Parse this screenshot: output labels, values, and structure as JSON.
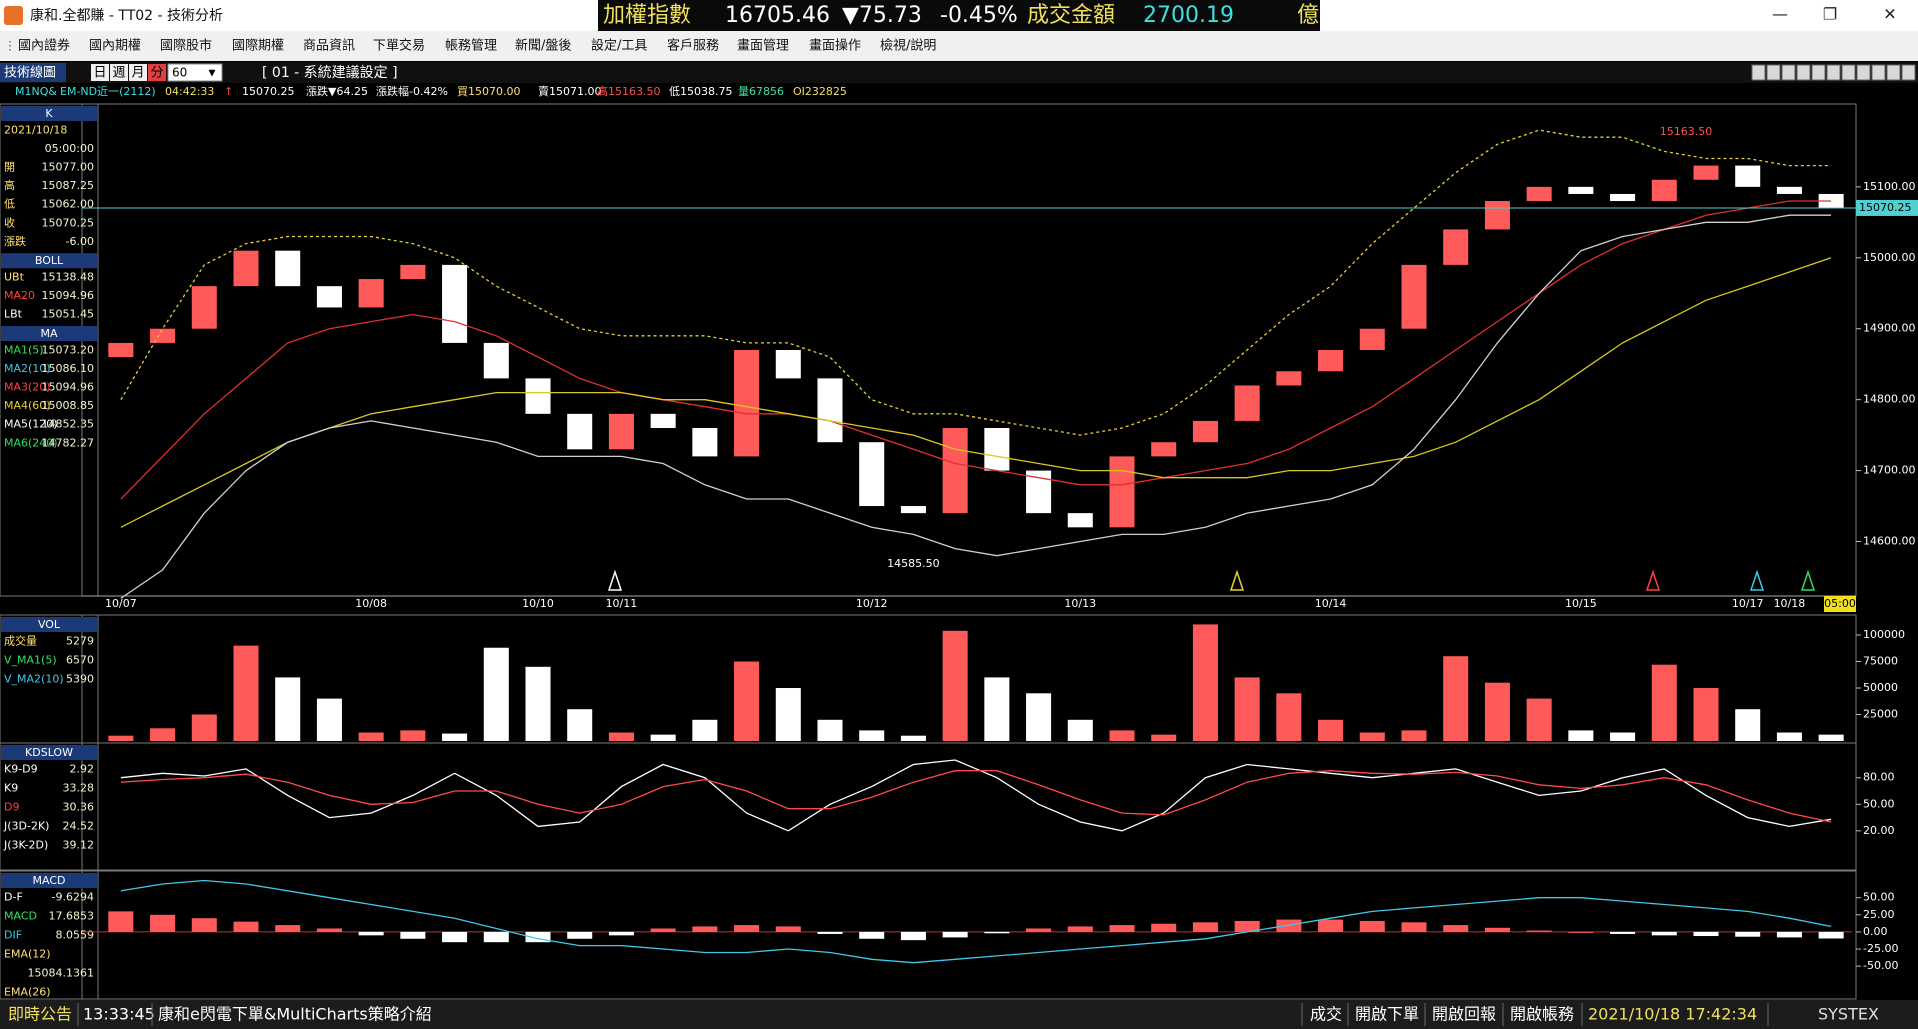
{
  "window": {
    "title": "康和.全都賺 - TT02 - 技術分析",
    "ticker": [
      "加權指數",
      "16705.46",
      "▼75.73",
      "-0.45%",
      "成交金額",
      "2700.19",
      "億"
    ]
  },
  "menu": [
    "國內證券",
    "國內期權",
    "國際股市",
    "國際期權",
    "商品資訊",
    "下單交易",
    "帳務管理",
    "新聞/盤後",
    "設定/工具",
    "客戶服務",
    "畫面管理",
    "畫面操作",
    "檢視/說明"
  ],
  "toolbar": {
    "title": "技術線圖",
    "periods": [
      "日",
      "週",
      "月",
      "分"
    ],
    "interval": "60",
    "scheme": "[ 01 - 系統建議設定 ]"
  },
  "info_bar": [
    "M1NQ&",
    "EM-ND近一(2112)",
    "04:42:33",
    "↑",
    "15070.25",
    "漲跌▼64.25",
    "漲跌幅-0.42%",
    "買15070.00",
    "賣15071.00",
    "高15163.50",
    "低15038.75",
    "量67856",
    "OI232825"
  ],
  "chart_data": [
    {
      "type": "candlestick",
      "categories": [
        "10/07",
        null,
        null,
        null,
        null,
        null,
        "10/08",
        null,
        null,
        null,
        "10/10",
        null,
        "10/11",
        null,
        null,
        null,
        null,
        null,
        "10/12",
        null,
        null,
        null,
        null,
        "10/13",
        null,
        null,
        null,
        null,
        null,
        "10/14",
        null,
        null,
        null,
        null,
        null,
        "10/15",
        null,
        null,
        null,
        "10/17",
        "10/18",
        null
      ],
      "open": [
        14860,
        14880,
        14900,
        14960,
        15010,
        14960,
        14930,
        14970,
        14990,
        14880,
        14830,
        14780,
        14730,
        14780,
        14760,
        14720,
        14870,
        14830,
        14740,
        14650,
        14640,
        14760,
        14700,
        14640,
        14620,
        14720,
        14740,
        14770,
        14820,
        14840,
        14870,
        14900,
        14990,
        15040,
        15080,
        15100,
        15090,
        15080,
        15110,
        15130,
        15100,
        15090
      ],
      "close": [
        14880,
        14900,
        14960,
        15010,
        14960,
        14930,
        14970,
        14990,
        14880,
        14830,
        14780,
        14730,
        14780,
        14760,
        14720,
        14870,
        14830,
        14740,
        14650,
        14640,
        14760,
        14700,
        14640,
        14620,
        14720,
        14740,
        14770,
        14820,
        14840,
        14870,
        14900,
        14990,
        15040,
        15080,
        15100,
        15090,
        15080,
        15110,
        15130,
        15100,
        15090,
        15070
      ],
      "up_color": "#ff5a5a",
      "down_color": "#ffffff",
      "series": [
        {
          "color": "#e03030",
          "dashed": false,
          "values": [
            14660,
            14720,
            14780,
            14830,
            14880,
            14900,
            14910,
            14920,
            14910,
            14890,
            14860,
            14830,
            14810,
            14800,
            14790,
            14780,
            14780,
            14770,
            14750,
            14730,
            14710,
            14700,
            14690,
            14680,
            14680,
            14690,
            14700,
            14710,
            14730,
            14760,
            14790,
            14830,
            14870,
            14910,
            14950,
            14990,
            15020,
            15040,
            15060,
            15070,
            15080,
            15080
          ]
        },
        {
          "color": "#d8c820",
          "dashed": false,
          "values": [
            14620,
            14650,
            14680,
            14710,
            14740,
            14760,
            14780,
            14790,
            14800,
            14810,
            14810,
            14810,
            14810,
            14800,
            14800,
            14790,
            14780,
            14770,
            14760,
            14750,
            14730,
            14720,
            14710,
            14700,
            14700,
            14690,
            14690,
            14690,
            14700,
            14700,
            14710,
            14720,
            14740,
            14770,
            14800,
            14840,
            14880,
            14910,
            14940,
            14960,
            14980,
            15000
          ]
        },
        {
          "color": "#e8d030",
          "dashed": true,
          "values": [
            14800,
            14900,
            14990,
            15020,
            15030,
            15030,
            15030,
            15020,
            15000,
            14960,
            14930,
            14900,
            14890,
            14890,
            14890,
            14880,
            14880,
            14860,
            14800,
            14780,
            14780,
            14770,
            14760,
            14750,
            14760,
            14780,
            14820,
            14870,
            14920,
            14960,
            15020,
            15070,
            15120,
            15160,
            15180,
            15170,
            15170,
            15150,
            15140,
            15140,
            15130,
            15130
          ]
        },
        {
          "color": "#d0d0d0",
          "dashed": false,
          "values": [
            14520,
            14560,
            14640,
            14700,
            14740,
            14760,
            14770,
            14760,
            14750,
            14740,
            14720,
            14720,
            14720,
            14710,
            14680,
            14660,
            14660,
            14640,
            14620,
            14610,
            14590,
            14580,
            14590,
            14600,
            14610,
            14610,
            14620,
            14640,
            14650,
            14660,
            14680,
            14730,
            14800,
            14880,
            14950,
            15010,
            15030,
            15040,
            15050,
            15050,
            15060,
            15060
          ]
        }
      ],
      "ylim": [
        14526,
        15214
      ],
      "yticks": [
        {
          "value": 14600,
          "label": "14600.00"
        },
        {
          "value": 14700,
          "label": "14700.00"
        },
        {
          "value": 14800,
          "label": "14800.00"
        },
        {
          "value": 14900,
          "label": "14900.00"
        },
        {
          "value": 15000,
          "label": "15000.00"
        },
        {
          "value": 15100,
          "label": "15100.00"
        }
      ],
      "high": {
        "value": 15163.5,
        "label": "15163.50"
      },
      "low": {
        "value": 14585.5,
        "label": "14585.50"
      },
      "last": {
        "value": 15070.25,
        "label": "15070.25"
      },
      "time_label": "05:00",
      "side_panel": [
        {
          "header": "K",
          "rows": [
            {
              "label": "2021/10/18"
            },
            {
              "value": "05:00:00"
            },
            {
              "label": "開",
              "value": "15077.00"
            },
            {
              "label": "高",
              "value": "15087.25"
            },
            {
              "label": "低",
              "value": "15062.00"
            },
            {
              "label": "收",
              "value": "15070.25"
            },
            {
              "label": "漲跌",
              "value": "-6.00"
            }
          ]
        },
        {
          "header": "BOLL",
          "rows": [
            {
              "label": "UBt",
              "value": "15138.48",
              "color": "#ffe070"
            },
            {
              "label": "MA20",
              "value": "15094.96",
              "color": "#ff4040"
            },
            {
              "label": "LBt",
              "value": "15051.45",
              "color": "#ffffff"
            }
          ]
        },
        {
          "header": "MA",
          "rows": [
            {
              "label": "MA1(5)",
              "value": "15073.20",
              "color": "#30e060"
            },
            {
              "label": "MA2(10)",
              "value": "15086.10",
              "color": "#40c8e8"
            },
            {
              "label": "MA3(20)",
              "value": "15094.96",
              "color": "#ff4040"
            },
            {
              "label": "MA4(60)",
              "value": "15008.85",
              "color": "#e8d030"
            },
            {
              "label": "MA5(120)",
              "value": "14852.35",
              "color": "#ffffff"
            },
            {
              "label": "MA6(240)",
              "value": "14782.27",
              "color": "#30e060"
            }
          ]
        }
      ]
    },
    {
      "type": "bar",
      "values": [
        5000,
        12000,
        25000,
        90000,
        60000,
        40000,
        8000,
        10000,
        7000,
        88000,
        70000,
        30000,
        8000,
        6000,
        20000,
        75000,
        50000,
        20000,
        10000,
        5000,
        104000,
        60000,
        45000,
        20000,
        10000,
        6000,
        110000,
        60000,
        45000,
        20000,
        8000,
        10000,
        80000,
        55000,
        40000,
        10000,
        8000,
        72000,
        50000,
        30000,
        8000,
        6000
      ],
      "ylim": [
        0,
        117000
      ],
      "yticks": [
        25000,
        50000,
        75000,
        100000
      ],
      "side_panel": [
        {
          "header": "VOL",
          "rows": [
            {
              "label": "成交量",
              "value": "5279",
              "color": "#ffe070"
            },
            {
              "label": "V_MA1(5)",
              "value": "6570",
              "color": "#30e060"
            },
            {
              "label": "V_MA2(10)",
              "value": "5390",
              "color": "#40c8e8"
            }
          ]
        }
      ]
    },
    {
      "type": "line",
      "series": [
        {
          "color": "#ffffff",
          "values": [
            80,
            85,
            82,
            90,
            60,
            35,
            40,
            60,
            85,
            60,
            25,
            30,
            70,
            95,
            80,
            40,
            20,
            50,
            70,
            95,
            100,
            80,
            50,
            30,
            20,
            40,
            80,
            95,
            90,
            85,
            80,
            85,
            90,
            75,
            60,
            65,
            80,
            90,
            60,
            35,
            25,
            33
          ]
        },
        {
          "color": "#ff4a4a",
          "values": [
            75,
            78,
            80,
            84,
            75,
            60,
            50,
            52,
            65,
            65,
            50,
            40,
            50,
            70,
            78,
            65,
            45,
            45,
            58,
            75,
            88,
            88,
            72,
            55,
            40,
            38,
            55,
            75,
            85,
            88,
            85,
            84,
            86,
            82,
            72,
            68,
            72,
            80,
            72,
            55,
            40,
            30
          ]
        }
      ],
      "ylim": [
        -22,
        117
      ],
      "yticks": [
        {
          "value": 20,
          "label": "20.00"
        },
        {
          "value": 50,
          "label": "50.00"
        },
        {
          "value": 80,
          "label": "80.00"
        }
      ],
      "side_panel": [
        {
          "header": "KDSLOW",
          "rows": [
            {
              "label": "K9-D9",
              "value": "2.92",
              "color": "#ffffff"
            },
            {
              "label": "K9",
              "value": "33.28",
              "color": "#ffffff"
            },
            {
              "label": "D9",
              "value": "30.36",
              "color": "#ff4040"
            },
            {
              "label": "J(3D-2K)",
              "value": "24.52",
              "color": "#ffffff"
            },
            {
              "label": "J(3K-2D)",
              "value": "39.12",
              "color": "#ffffff"
            }
          ]
        }
      ]
    },
    {
      "type": "macd",
      "values": [
        30,
        25,
        20,
        15,
        10,
        5,
        -5,
        -10,
        -15,
        -15,
        -15,
        -10,
        -5,
        5,
        8,
        10,
        8,
        -3,
        -10,
        -12,
        -8,
        -2,
        5,
        8,
        10,
        12,
        14,
        16,
        18,
        18,
        16,
        14,
        10,
        6,
        2,
        0,
        -3,
        -5,
        -6,
        -7,
        -8,
        -9.6
      ],
      "up_color": "#ff5a5a",
      "down_color": "#ffffff",
      "series": [
        {
          "color": "#40c8e8",
          "values": [
            60,
            70,
            75,
            70,
            60,
            50,
            40,
            30,
            20,
            5,
            -10,
            -20,
            -20,
            -25,
            -30,
            -30,
            -25,
            -30,
            -40,
            -45,
            -40,
            -35,
            -30,
            -25,
            -20,
            -15,
            -10,
            0,
            10,
            20,
            30,
            35,
            40,
            45,
            50,
            50,
            45,
            40,
            35,
            30,
            20,
            8
          ]
        }
      ],
      "ylim": [
        -95,
        86
      ],
      "yticks": [
        {
          "value": -50,
          "label": "-50.00"
        },
        {
          "value": -25,
          "label": "-25.00"
        },
        {
          "value": 0,
          "label": "0.00"
        },
        {
          "value": 25,
          "label": "25.00"
        },
        {
          "value": 50,
          "label": "50.00"
        }
      ],
      "side_panel": [
        {
          "header": "MACD",
          "rows": [
            {
              "label": "D-F",
              "value": "-9.6294",
              "color": "#ffffff"
            },
            {
              "label": "MACD",
              "value": "17.6853",
              "color": "#30e060"
            },
            {
              "label": "DIF",
              "value": "8.0559",
              "color": "#40c8e8"
            },
            {
              "label": "EMA(12)",
              "color": "#ffe070"
            },
            {
              "value": "15084.1361"
            },
            {
              "label": "EMA(26)",
              "color": "#ffe070"
            }
          ]
        }
      ]
    }
  ],
  "status_bar": [
    "即時公告",
    "13:33:45",
    "康和e閃電下單&MultiCharts策略介紹",
    "成交",
    "開啟下單",
    "開啟回報",
    "開啟帳務",
    "2021/10/18 17:42:34",
    "SYSTEX"
  ]
}
